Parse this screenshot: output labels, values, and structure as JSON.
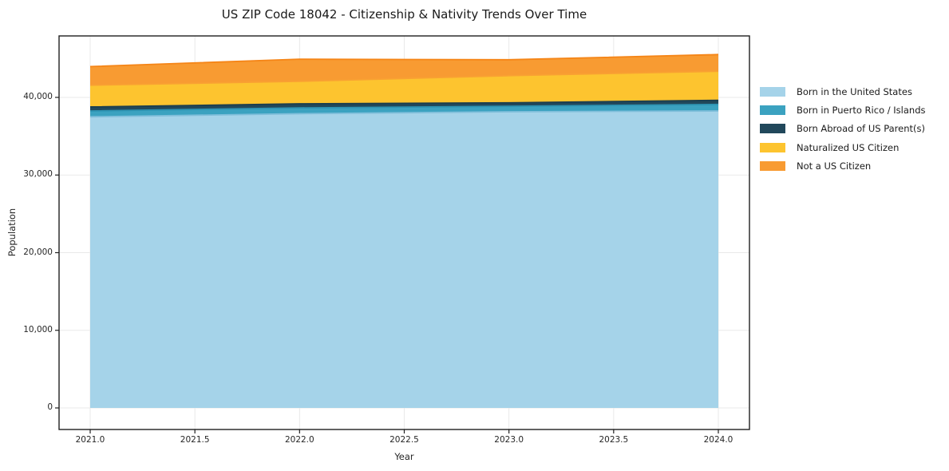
{
  "chart_data": {
    "type": "area",
    "stacked": true,
    "title": "US ZIP Code 18042 - Citizenship & Nativity Trends Over Time",
    "xlabel": "Year",
    "ylabel": "Population",
    "x": [
      2021,
      2022,
      2023,
      2024
    ],
    "series": [
      {
        "name": "Born in the United States",
        "values": [
          37500,
          37900,
          38150,
          38250
        ],
        "fill": "#a5d3e9",
        "edge": "#7fbeda"
      },
      {
        "name": "Born in Puerto Rico / Islands",
        "values": [
          750,
          750,
          700,
          850
        ],
        "fill": "#3ba2c0",
        "edge": "#2d93b2"
      },
      {
        "name": "Born Abroad of US Parent(s)",
        "values": [
          520,
          520,
          450,
          520
        ],
        "fill": "#21485b",
        "edge": "#1b3e4f"
      },
      {
        "name": "Naturalized US Citizen",
        "values": [
          2800,
          2900,
          3500,
          3750
        ],
        "fill": "#fdc42f",
        "edge": "#f9a132"
      },
      {
        "name": "Not a US Citizen",
        "values": [
          2400,
          2850,
          2050,
          2150
        ],
        "fill": "#f89b32",
        "edge": "#f58517"
      }
    ],
    "totals": [
      43970,
      44920,
      44850,
      45520
    ],
    "xticks": [
      2021.0,
      2021.5,
      2022.0,
      2022.5,
      2023.0,
      2023.5,
      2024.0
    ],
    "xtick_labels": [
      "2021.0",
      "2021.5",
      "2022.0",
      "2022.5",
      "2023.0",
      "2023.5",
      "2024.0"
    ],
    "yticks": [
      0,
      10000,
      20000,
      30000,
      40000
    ],
    "ytick_labels": [
      "0",
      "10,000",
      "20,000",
      "30,000",
      "40,000"
    ],
    "ylim": [
      -2780,
      47900
    ],
    "grid": true,
    "grid_color": "#e9e9e9",
    "spine_color": "#1f1f1f",
    "legend_position": "right-outside",
    "background_color": "#ffffff"
  }
}
